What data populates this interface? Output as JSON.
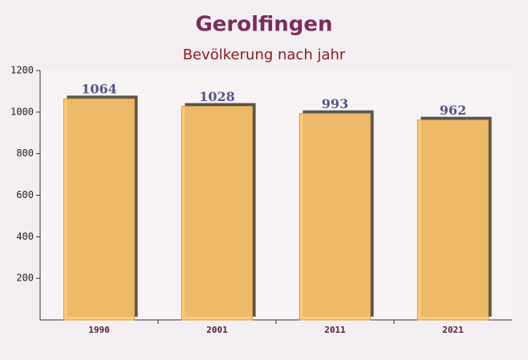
{
  "chart_data": {
    "type": "bar",
    "title": "Gerolfingen",
    "subtitle": "Bevölkerung nach jahr",
    "categories": [
      "1990",
      "2001",
      "2011",
      "2021"
    ],
    "values": [
      1064,
      1028,
      993,
      962
    ],
    "color": "#fdc56a",
    "ylim": [
      0,
      1200
    ],
    "yticks": [
      200,
      400,
      600,
      800,
      1000,
      1200
    ]
  }
}
